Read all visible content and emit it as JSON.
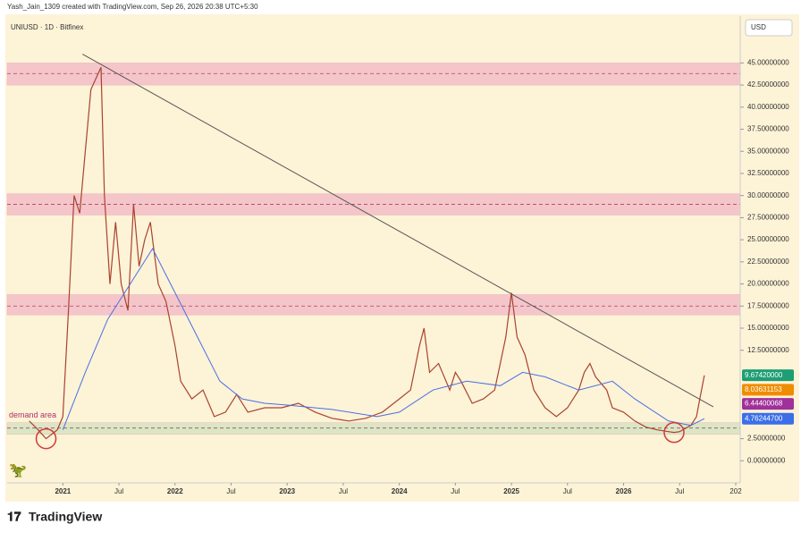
{
  "chart_data": {
    "type": "line",
    "header": "Yash_Jain_1309 created with TradingView.com, Sep 26, 2026 20:38 UTC+5:30",
    "title": "UNIUSD · 1D · Bitfinex",
    "currency": "USD",
    "brand": "TradingView",
    "xlim": [
      2020.503,
      2027.04
    ],
    "xticks": [
      2021,
      {
        "value": 2021.5,
        "label": "Jul"
      },
      2022,
      {
        "value": 2022.5,
        "label": "Jul"
      },
      2023,
      {
        "value": 2023.5,
        "label": "Jul"
      },
      2024,
      {
        "value": 2024.5,
        "label": "Jul"
      },
      2025,
      {
        "value": 2025.5,
        "label": "Jul"
      },
      2026,
      {
        "value": 2026.5,
        "label": "Jul"
      },
      {
        "value": 2027,
        "label": "202"
      }
    ],
    "ylim": [
      -2.5,
      50.3
    ],
    "yticks": [
      {
        "value": 0,
        "label": "0.00000000"
      },
      {
        "value": 2.5,
        "label": "2.50000000"
      },
      {
        "value": 12.5,
        "label": "12.50000000"
      },
      {
        "value": 15,
        "label": "15.00000000"
      },
      {
        "value": 17.5,
        "label": "17.50000000"
      },
      {
        "value": 20,
        "label": "20.00000000"
      },
      {
        "value": 22.5,
        "label": "22.50000000"
      },
      {
        "value": 25,
        "label": "25.00000000"
      },
      {
        "value": 27.5,
        "label": "27.50000000"
      },
      {
        "value": 30,
        "label": "30.00000000"
      },
      {
        "value": 32.5,
        "label": "32.50000000"
      },
      {
        "value": 35,
        "label": "35.00000000"
      },
      {
        "value": 37.5,
        "label": "37.50000000"
      },
      {
        "value": 40,
        "label": "40.00000000"
      },
      {
        "value": 42.5,
        "label": "42.50000000"
      },
      {
        "value": 45,
        "label": "45.00000000"
      }
    ],
    "grid": false,
    "zones": [
      {
        "from": 42.5,
        "to": 45,
        "level": 43.8,
        "color": "#f2b8c6"
      },
      {
        "from": 27.8,
        "to": 30.2,
        "level": 29,
        "color": "#f2b8c6"
      },
      {
        "from": 16.5,
        "to": 18.8,
        "level": 17.5,
        "color": "#f2b8c6"
      },
      {
        "from": 3.0,
        "to": 4.3,
        "level": 3.7,
        "color": "#cfe3bf",
        "label": "demand area"
      }
    ],
    "trendline": {
      "x": [
        2021.175,
        2026.8
      ],
      "values": [
        46,
        6.1
      ],
      "color": "#555555"
    },
    "markers": [
      {
        "x": 2020.85,
        "value": 2.5
      },
      {
        "x": 2026.45,
        "value": 3.2
      }
    ],
    "series": [
      {
        "color": "#a8432f",
        "x": [
          2020.7,
          2020.78,
          2020.85,
          2020.95,
          2021.0,
          2021.05,
          2021.1,
          2021.15,
          2021.2,
          2021.25,
          2021.34,
          2021.37,
          2021.42,
          2021.47,
          2021.52,
          2021.58,
          2021.63,
          2021.68,
          2021.73,
          2021.78,
          2021.85,
          2021.92,
          2022.0,
          2022.05,
          2022.15,
          2022.25,
          2022.35,
          2022.45,
          2022.55,
          2022.65,
          2022.8,
          2022.95,
          2023.1,
          2023.25,
          2023.4,
          2023.55,
          2023.7,
          2023.85,
          2024.0,
          2024.1,
          2024.18,
          2024.22,
          2024.27,
          2024.35,
          2024.45,
          2024.5,
          2024.55,
          2024.65,
          2024.75,
          2024.85,
          2024.9,
          2024.95,
          2025.0,
          2025.05,
          2025.12,
          2025.2,
          2025.3,
          2025.4,
          2025.5,
          2025.6,
          2025.65,
          2025.7,
          2025.75,
          2025.85,
          2025.9,
          2026.0,
          2026.1,
          2026.2,
          2026.3,
          2026.4,
          2026.45,
          2026.5,
          2026.6,
          2026.65,
          2026.68,
          2026.72
        ],
        "values": [
          4.5,
          3.5,
          2.5,
          3.5,
          5,
          17,
          30,
          28,
          35,
          42,
          44.5,
          30,
          20,
          27,
          20,
          17,
          29,
          22,
          25,
          27,
          20,
          18,
          13,
          9,
          7,
          8,
          5,
          5.5,
          7.5,
          5.5,
          6,
          6,
          6.5,
          5.5,
          4.8,
          4.5,
          4.8,
          5.5,
          7,
          8,
          13,
          15,
          10,
          11,
          8,
          10,
          9,
          6.5,
          7,
          8,
          11,
          14,
          19,
          14,
          12,
          8,
          6,
          5,
          6,
          8,
          10,
          11,
          9.5,
          8,
          6,
          5.5,
          4.5,
          3.8,
          3.5,
          3.3,
          3.2,
          3.3,
          4,
          5,
          7,
          9.67
        ]
      },
      {
        "color": "#4a6fe3",
        "x": [
          2021.0,
          2021.2,
          2021.4,
          2021.6,
          2021.8,
          2022.0,
          2022.2,
          2022.4,
          2022.6,
          2022.8,
          2023.0,
          2023.4,
          2023.8,
          2024.0,
          2024.3,
          2024.6,
          2024.9,
          2025.1,
          2025.3,
          2025.6,
          2025.9,
          2026.1,
          2026.4,
          2026.6,
          2026.72
        ],
        "values": [
          3.5,
          10,
          16,
          20,
          24,
          19,
          14,
          9,
          7,
          6.5,
          6.3,
          5.8,
          5,
          5.5,
          8,
          9,
          8.5,
          10,
          9.5,
          8,
          9,
          7,
          4.5,
          4,
          4.76
        ]
      }
    ],
    "price_labels": [
      {
        "value": 9.6742,
        "label": "9.67420000",
        "color": "#1e9e74"
      },
      {
        "value": 8.03631153,
        "label": "8.03631153",
        "color": "#f08c00"
      },
      {
        "value": 6.44400068,
        "label": "6.44400068",
        "color": "#a0309a"
      },
      {
        "value": 4.762447,
        "label": "4.76244700",
        "color": "#3b6ee8"
      }
    ]
  }
}
